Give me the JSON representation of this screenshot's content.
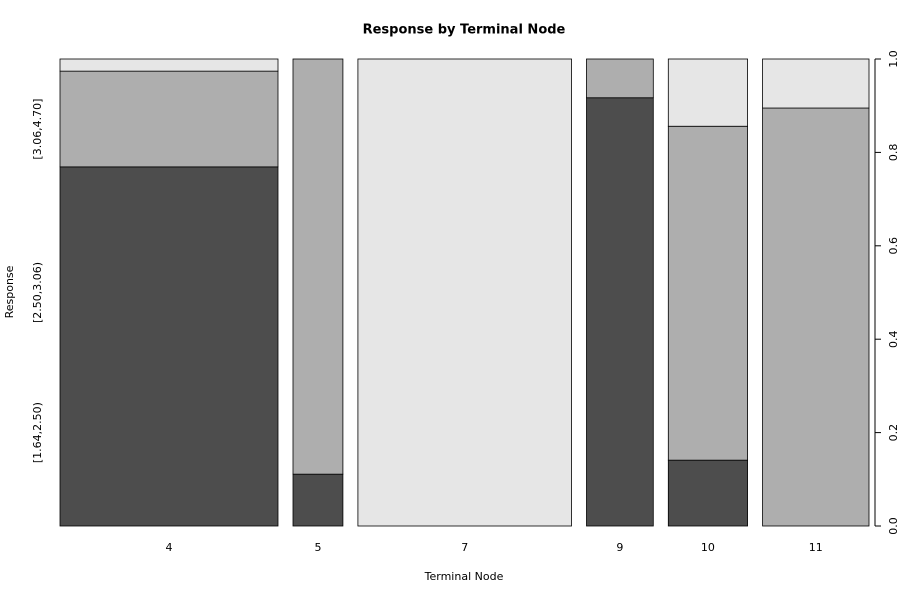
{
  "chart_data": {
    "type": "spineplot",
    "title": "Response by Terminal Node",
    "x_label": "Terminal Node",
    "y_label": "Response",
    "categories": [
      "4",
      "5",
      "7",
      "9",
      "10",
      "11"
    ],
    "widths": [
      0.297,
      0.068,
      0.291,
      0.091,
      0.108,
      0.145
    ],
    "series": [
      {
        "name": "[1.64,2.50)",
        "color": "#4d4d4d",
        "values": [
          0.769,
          0.111,
          0,
          0.917,
          0.141,
          0
        ]
      },
      {
        "name": "[2.50,3.06)",
        "color": "#aeaeae",
        "values": [
          0.205,
          0.889,
          0,
          0.083,
          0.715,
          0.895
        ]
      },
      {
        "name": "[3.06,4.70]",
        "color": "#e6e6e6",
        "values": [
          0.026,
          0,
          1,
          0,
          0.144,
          0.105
        ]
      }
    ],
    "ylim": [
      0,
      1
    ],
    "yticks": [
      {
        "value": 0,
        "label": "0.0"
      },
      {
        "value": 0.2,
        "label": "0.2"
      },
      {
        "value": 0.4,
        "label": "0.4"
      },
      {
        "value": 0.6,
        "label": "0.6"
      },
      {
        "value": 0.8,
        "label": "0.8"
      },
      {
        "value": 1,
        "label": "1.0"
      }
    ]
  }
}
